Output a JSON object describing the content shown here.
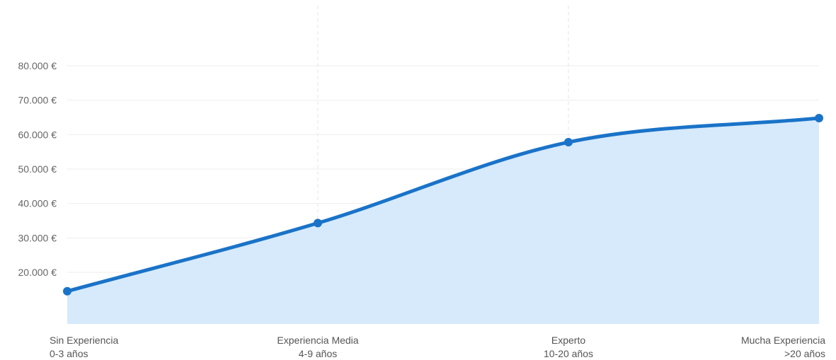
{
  "chart_data": {
    "type": "area",
    "title": "",
    "xlabel": "",
    "ylabel": "",
    "ylim": [
      10000,
      80000
    ],
    "grid": true,
    "y_ticks": [
      20000,
      30000,
      40000,
      50000,
      60000,
      70000,
      80000
    ],
    "y_tick_labels": [
      "20.000 €",
      "30.000 €",
      "40.000 €",
      "50.000 €",
      "60.000 €",
      "70.000 €",
      "80.000 €"
    ],
    "categories": [
      {
        "line1": "Sin Experiencia",
        "line2": "0-3 años",
        "align": "start"
      },
      {
        "line1": "Experiencia Media",
        "line2": "4-9 años",
        "align": "middle"
      },
      {
        "line1": "Experto",
        "line2": "10-20 años",
        "align": "middle"
      },
      {
        "line1": "Mucha Experiencia",
        "line2": ">20 años",
        "align": "end"
      }
    ],
    "series": [
      {
        "values": [
          14500,
          34300,
          57800,
          64800
        ],
        "line_color": "#1a73c8",
        "fill_color": "#d6eafb"
      }
    ]
  }
}
